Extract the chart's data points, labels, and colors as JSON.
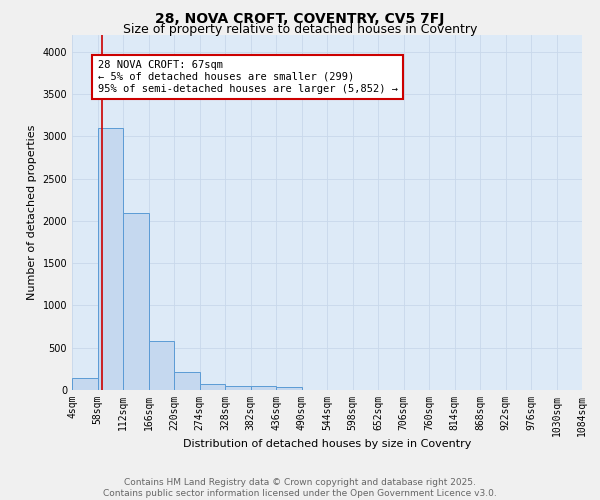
{
  "title": "28, NOVA CROFT, COVENTRY, CV5 7FJ",
  "subtitle": "Size of property relative to detached houses in Coventry",
  "xlabel": "Distribution of detached houses by size in Coventry",
  "ylabel": "Number of detached properties",
  "bar_edges": [
    4,
    58,
    112,
    166,
    220,
    274,
    328,
    382,
    436,
    490,
    544,
    598,
    652,
    706,
    760,
    814,
    868,
    922,
    976,
    1030,
    1084
  ],
  "bar_heights": [
    140,
    3100,
    2090,
    580,
    215,
    70,
    50,
    45,
    40,
    0,
    0,
    0,
    0,
    0,
    0,
    0,
    0,
    0,
    0,
    0
  ],
  "bar_color": "#c5d8ef",
  "bar_edge_color": "#5b9bd5",
  "red_line_x": 67,
  "annotation_text": "28 NOVA CROFT: 67sqm\n← 5% of detached houses are smaller (299)\n95% of semi-detached houses are larger (5,852) →",
  "annotation_box_color": "#ffffff",
  "annotation_box_edge": "#cc0000",
  "annotation_text_color": "#000000",
  "red_line_color": "#cc0000",
  "ylim": [
    0,
    4200
  ],
  "yticks": [
    0,
    500,
    1000,
    1500,
    2000,
    2500,
    3000,
    3500,
    4000
  ],
  "grid_color": "#c8d8ea",
  "background_color": "#ddeaf7",
  "fig_background_color": "#f0f0f0",
  "footer_line1": "Contains HM Land Registry data © Crown copyright and database right 2025.",
  "footer_line2": "Contains public sector information licensed under the Open Government Licence v3.0.",
  "title_fontsize": 10,
  "subtitle_fontsize": 9,
  "axis_label_fontsize": 8,
  "tick_fontsize": 7,
  "annotation_fontsize": 7.5,
  "footer_fontsize": 6.5
}
